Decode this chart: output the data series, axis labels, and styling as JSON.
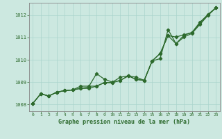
{
  "background_color": "#cce8e0",
  "grid_color": "#aad4cc",
  "line_color": "#2d6a2d",
  "marker_color": "#2d6a2d",
  "xlabel": "Graphe pression niveau de la mer (hPa)",
  "xlim": [
    -0.5,
    23.5
  ],
  "ylim": [
    1007.7,
    1012.55
  ],
  "yticks": [
    1008,
    1009,
    1010,
    1011,
    1012
  ],
  "xticks": [
    0,
    1,
    2,
    3,
    4,
    5,
    6,
    7,
    8,
    9,
    10,
    11,
    12,
    13,
    14,
    15,
    16,
    17,
    18,
    19,
    20,
    21,
    22,
    23
  ],
  "series1": [
    1008.05,
    1008.48,
    1008.38,
    1008.55,
    1008.62,
    1008.65,
    1008.72,
    1008.78,
    1009.38,
    1009.13,
    1009.0,
    1009.22,
    1009.28,
    1009.22,
    1009.08,
    1009.95,
    1010.05,
    1011.35,
    1010.72,
    1011.1,
    1011.22,
    1011.62,
    1012.02,
    1012.32
  ],
  "series2": [
    1008.05,
    1008.48,
    1008.38,
    1008.55,
    1008.62,
    1008.65,
    1008.72,
    1008.72,
    1008.82,
    1008.98,
    1008.98,
    1009.08,
    1009.28,
    1009.12,
    1009.08,
    1009.95,
    1010.28,
    1011.08,
    1010.72,
    1011.02,
    1011.18,
    1011.58,
    1011.98,
    1012.32
  ],
  "series3": [
    1008.05,
    1008.48,
    1008.38,
    1008.55,
    1008.62,
    1008.65,
    1008.82,
    1008.82,
    1008.82,
    1008.98,
    1008.98,
    1009.08,
    1009.28,
    1009.12,
    1009.08,
    1009.95,
    1010.28,
    1011.08,
    1011.02,
    1011.12,
    1011.22,
    1011.68,
    1012.02,
    1012.32
  ]
}
